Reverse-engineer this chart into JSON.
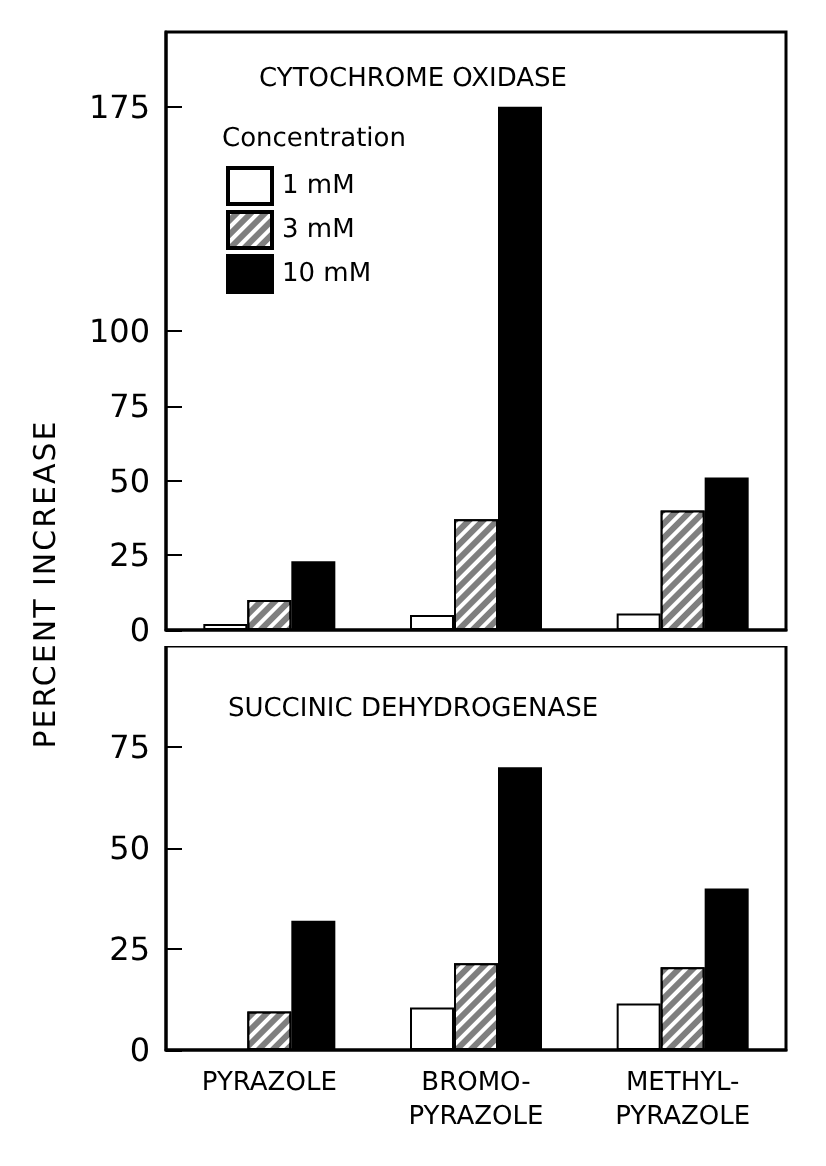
{
  "chart_data": [
    {
      "type": "bar",
      "title": "CYTOCHROME OXIDASE",
      "ylabel": "PERCENT INCREASE",
      "legend_title": "Concentration",
      "legend": "top left",
      "tick_labels": "y",
      "ylim": [
        0,
        200
      ],
      "yticks": [
        0,
        25,
        50,
        75,
        100,
        175
      ],
      "series": [
        {
          "name": "1 mM",
          "color": "#ffffff",
          "values": [
            2,
            5,
            5.5
          ]
        },
        {
          "name": "3 mM",
          "color": "#7f7f7f",
          "values": [
            10,
            37,
            40
          ]
        },
        {
          "name": "10 mM",
          "color": "#000000",
          "values": [
            23,
            175,
            51
          ]
        }
      ]
    },
    {
      "type": "bar",
      "title": "SUCCINIC DEHYDROGENASE",
      "categories": [
        "PYRAZOLE",
        "BROMO-\nPYRAZOLE",
        "METHYL-\nPYRAZOLE"
      ],
      "ylim": [
        0,
        100
      ],
      "yticks": [
        0,
        25,
        50,
        75
      ],
      "series": [
        {
          "color": "#ffffff",
          "values": [
            null,
            10.5,
            11.5
          ]
        },
        {
          "color": "#7f7f7f",
          "values": [
            9.5,
            21.5,
            20.5
          ]
        },
        {
          "color": "#000000",
          "values": [
            32,
            70,
            40
          ]
        }
      ]
    }
  ]
}
